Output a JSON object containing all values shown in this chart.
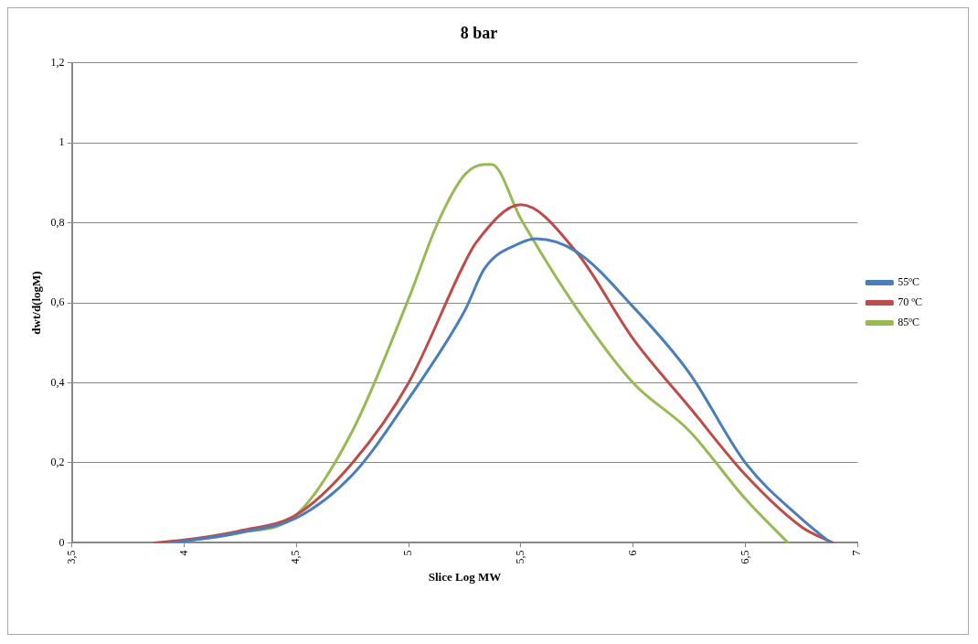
{
  "chart_data": {
    "type": "line",
    "title": "8 bar",
    "xlabel": "Slice Log MW",
    "ylabel": "dwt/d(logM)",
    "xlim": [
      3.5,
      7
    ],
    "xticks": [
      {
        "value": 3.5,
        "label": "3,5"
      },
      4,
      {
        "value": 4.5,
        "label": "4,5"
      },
      5,
      {
        "value": 5.5,
        "label": "5,5"
      },
      6,
      {
        "value": 6.5,
        "label": "6,5"
      },
      7
    ],
    "ylim": [
      0,
      1.2
    ],
    "yticks": [
      0,
      {
        "value": 0.2,
        "label": "0,2"
      },
      {
        "value": 0.4,
        "label": "0,4"
      },
      {
        "value": 0.6,
        "label": "0,6"
      },
      {
        "value": 0.8,
        "label": "0,8"
      },
      1,
      {
        "value": 1.2,
        "label": "1,2"
      }
    ],
    "grid": "y",
    "legend": "right",
    "marker": "none",
    "line_style": "solid",
    "series": [
      {
        "name": "55ºC",
        "color": "#4a7ebb",
        "x": [
          3.94,
          4.0,
          4.25,
          4.5,
          4.75,
          5.0,
          5.25,
          5.34,
          5.5,
          5.57,
          5.75,
          6.0,
          6.25,
          6.5,
          6.75,
          6.88
        ],
        "values": [
          0,
          0.004,
          0.026,
          0.062,
          0.17,
          0.36,
          0.58,
          0.687,
          0.75,
          0.76,
          0.727,
          0.59,
          0.425,
          0.2,
          0.06,
          0
        ]
      },
      {
        "name": "70 ºC",
        "color": "#be4b48",
        "x": [
          3.87,
          4.0,
          4.25,
          4.5,
          4.75,
          5.0,
          5.25,
          5.3,
          5.5,
          5.75,
          6.0,
          6.25,
          6.5,
          6.75,
          6.89
        ],
        "values": [
          0,
          0.007,
          0.03,
          0.07,
          0.2,
          0.4,
          0.7,
          0.75,
          0.845,
          0.725,
          0.51,
          0.34,
          0.17,
          0.04,
          0
        ]
      },
      {
        "name": "85ºC",
        "color": "#98b954",
        "x": [
          3.92,
          4.0,
          4.25,
          4.5,
          4.75,
          5.0,
          5.13,
          5.25,
          5.34,
          5.37,
          5.5,
          5.75,
          6.0,
          6.25,
          6.5,
          6.69
        ],
        "values": [
          0,
          0.005,
          0.025,
          0.07,
          0.28,
          0.61,
          0.8,
          0.92,
          0.946,
          0.946,
          0.81,
          0.585,
          0.4,
          0.28,
          0.11,
          0
        ]
      }
    ]
  }
}
